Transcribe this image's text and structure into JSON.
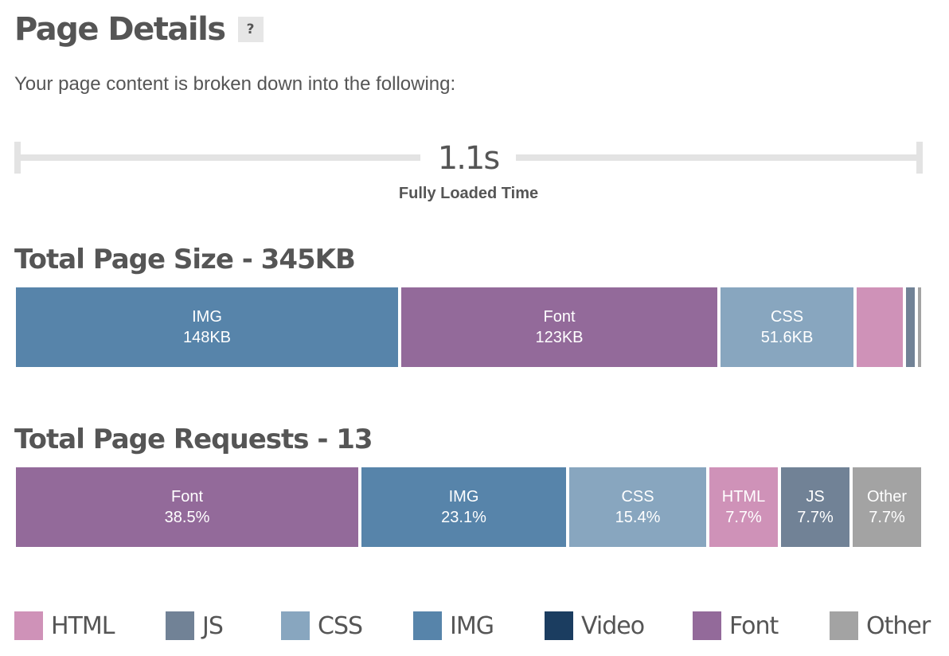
{
  "header": {
    "title": "Page Details",
    "help_label": "?"
  },
  "intro": "Your page content is broken down into the following:",
  "timeline": {
    "value": "1.1s",
    "label": "Fully Loaded Time"
  },
  "size": {
    "title": "Total Page Size - 345KB",
    "segments": [
      {
        "type": "IMG",
        "value": "148KB",
        "color": "#5784aa"
      },
      {
        "type": "Font",
        "value": "123KB",
        "color": "#936a9a"
      },
      {
        "type": "CSS",
        "value": "51.6KB",
        "color": "#88a6bf"
      },
      {
        "type": "HTML",
        "value": "",
        "color": "#cf92b8"
      },
      {
        "type": "JS",
        "value": "",
        "color": "#718296"
      },
      {
        "type": "Other",
        "value": "",
        "color": "#a3a3a3"
      }
    ]
  },
  "requests": {
    "title": "Total Page Requests - 13",
    "segments": [
      {
        "type": "Font",
        "value": "38.5%",
        "color": "#936a9a"
      },
      {
        "type": "IMG",
        "value": "23.1%",
        "color": "#5784aa"
      },
      {
        "type": "CSS",
        "value": "15.4%",
        "color": "#88a6bf"
      },
      {
        "type": "HTML",
        "value": "7.7%",
        "color": "#cf92b8"
      },
      {
        "type": "JS",
        "value": "7.7%",
        "color": "#718296"
      },
      {
        "type": "Other",
        "value": "7.7%",
        "color": "#a3a3a3"
      }
    ]
  },
  "legend": [
    {
      "label": "HTML",
      "color": "#cf92b8"
    },
    {
      "label": "JS",
      "color": "#718296"
    },
    {
      "label": "CSS",
      "color": "#88a6bf"
    },
    {
      "label": "IMG",
      "color": "#5784aa"
    },
    {
      "label": "Video",
      "color": "#1b3d60"
    },
    {
      "label": "Font",
      "color": "#936a9a"
    },
    {
      "label": "Other",
      "color": "#a3a3a3"
    }
  ]
}
